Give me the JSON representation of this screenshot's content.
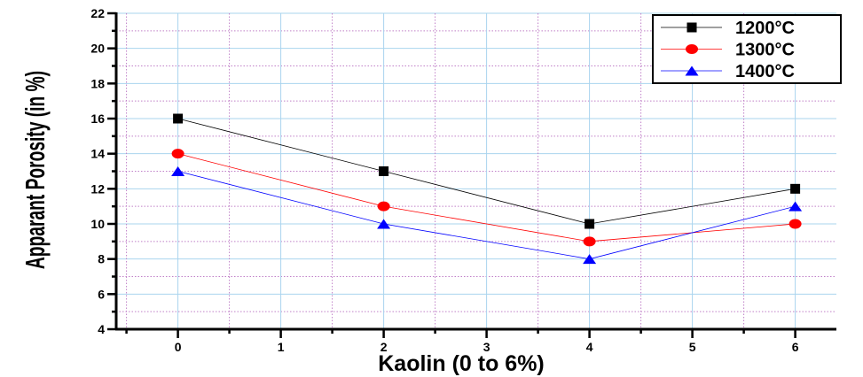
{
  "chart_data": {
    "type": "line",
    "xlabel": "Kaolin (0 to 6%)",
    "ylabel": "Apparant Porosity (in %)",
    "xlim": [
      -0.6,
      6.4
    ],
    "ylim": [
      4,
      22
    ],
    "x_ticks": [
      0,
      1,
      2,
      3,
      4,
      5,
      6
    ],
    "y_ticks": [
      4,
      6,
      8,
      10,
      12,
      14,
      16,
      18,
      20,
      22
    ],
    "grid": true,
    "legend_position": "top-right",
    "series": [
      {
        "name": "1200°C",
        "color": "#000000",
        "marker": "square",
        "x": [
          0,
          2,
          4,
          6
        ],
        "y": [
          16,
          13,
          10,
          12
        ]
      },
      {
        "name": "1300°C",
        "color": "#ff0000",
        "marker": "circle",
        "x": [
          0,
          2,
          4,
          6
        ],
        "y": [
          14,
          11,
          9,
          10
        ]
      },
      {
        "name": "1400°C",
        "color": "#0000ff",
        "marker": "triangle",
        "x": [
          0,
          2,
          4,
          6
        ],
        "y": [
          13,
          10,
          8,
          11
        ]
      }
    ]
  }
}
